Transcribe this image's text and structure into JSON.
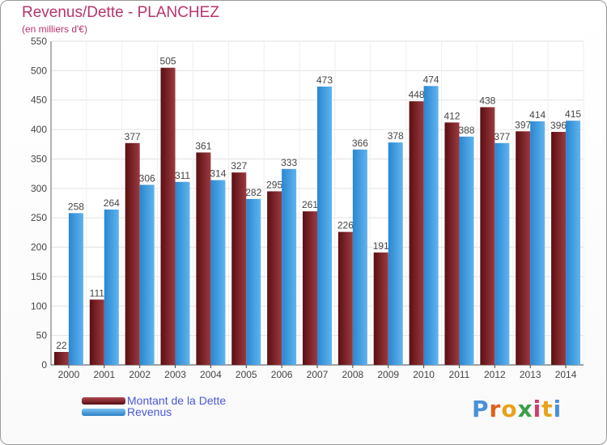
{
  "header": {
    "title": "Revenus/Dette - PLANCHEZ",
    "subtitle": "(en milliers d'€)"
  },
  "chart_data": {
    "type": "bar",
    "categories": [
      "2000",
      "2001",
      "2002",
      "2003",
      "2004",
      "2005",
      "2006",
      "2007",
      "2008",
      "2009",
      "2010",
      "2011",
      "2012",
      "2013",
      "2014"
    ],
    "series": [
      {
        "name": "Montant de la Dette",
        "values": [
          22,
          111,
          377,
          505,
          361,
          327,
          295,
          261,
          226,
          191,
          448,
          412,
          438,
          397,
          396
        ],
        "color": "#7a1c20"
      },
      {
        "name": "Revenus",
        "values": [
          258,
          264,
          306,
          311,
          314,
          282,
          333,
          473,
          366,
          378,
          474,
          388,
          377,
          414,
          415
        ],
        "color": "#3e9de0"
      }
    ],
    "ylim": [
      0,
      550
    ],
    "yticks": [
      0,
      50,
      100,
      150,
      200,
      250,
      300,
      350,
      400,
      450,
      500,
      550
    ],
    "grid": true,
    "data_labels": true,
    "legend_position": "bottom-left"
  },
  "brand": {
    "letters": [
      "P",
      "r",
      "o",
      "x",
      "i",
      "t",
      "i"
    ],
    "colors": [
      "#4a90d9",
      "#e0601c",
      "#e8a21c",
      "#3aa04a",
      "#d43b6a",
      "#e8a21c",
      "#4a90d9"
    ]
  }
}
